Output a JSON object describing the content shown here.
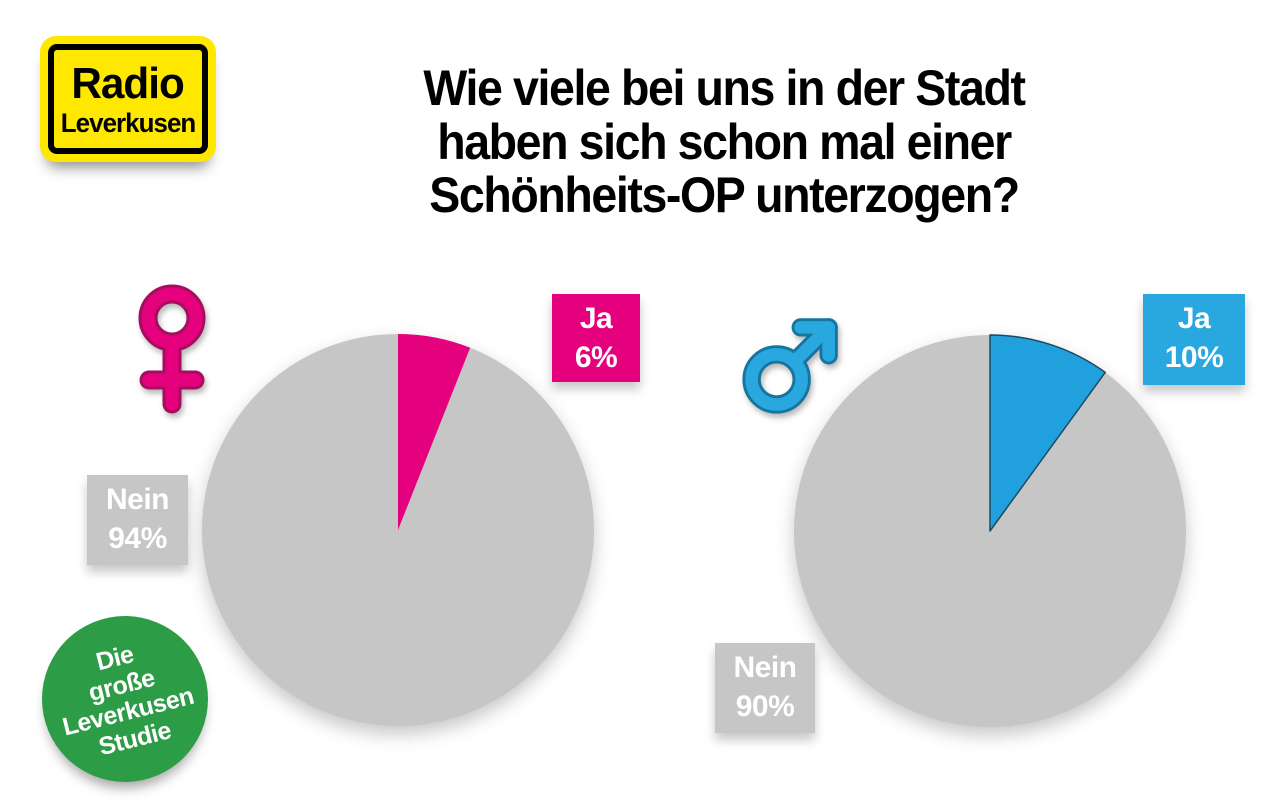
{
  "brand": {
    "line1": "Radio",
    "line2": "Leverkusen"
  },
  "title": {
    "line1": "Wie viele bei uns in der Stadt",
    "line2": "haben sich schon mal einer",
    "line3": "Schönheits-OP unterzogen?"
  },
  "stamp": {
    "line1": "Die",
    "line2": "große",
    "line3": "Leverkusen",
    "line4": "Studie"
  },
  "colors": {
    "pink": "#E5007D",
    "pink_dark": "#A50E5F",
    "blue": "#29A8E0",
    "blue_dark": "#16759E",
    "gray": "#C6C6C6",
    "green": "#2D9C46",
    "yellow": "#FFE800",
    "ink": "#000000"
  },
  "chart_data": [
    {
      "type": "pie",
      "icon": "female-symbol",
      "categories": [
        "Ja",
        "Nein"
      ],
      "values": [
        6,
        94
      ],
      "unit": "%",
      "colors": [
        "#E5007D",
        "#C6C6C6"
      ],
      "start_angle_deg": 0,
      "direction": "clockwise",
      "labels": {
        "yes": {
          "text": "Ja",
          "percent": "6%"
        },
        "no": {
          "text": "Nein",
          "percent": "94%"
        }
      }
    },
    {
      "type": "pie",
      "icon": "male-symbol",
      "categories": [
        "Ja",
        "Nein"
      ],
      "values": [
        10,
        90
      ],
      "unit": "%",
      "colors": [
        "#20A0DC",
        "#C6C6C6"
      ],
      "slice_outline": "#1B4A63",
      "start_angle_deg": 0,
      "direction": "clockwise",
      "labels": {
        "yes": {
          "text": "Ja",
          "percent": "10%"
        },
        "no": {
          "text": "Nein",
          "percent": "90%"
        }
      }
    }
  ]
}
